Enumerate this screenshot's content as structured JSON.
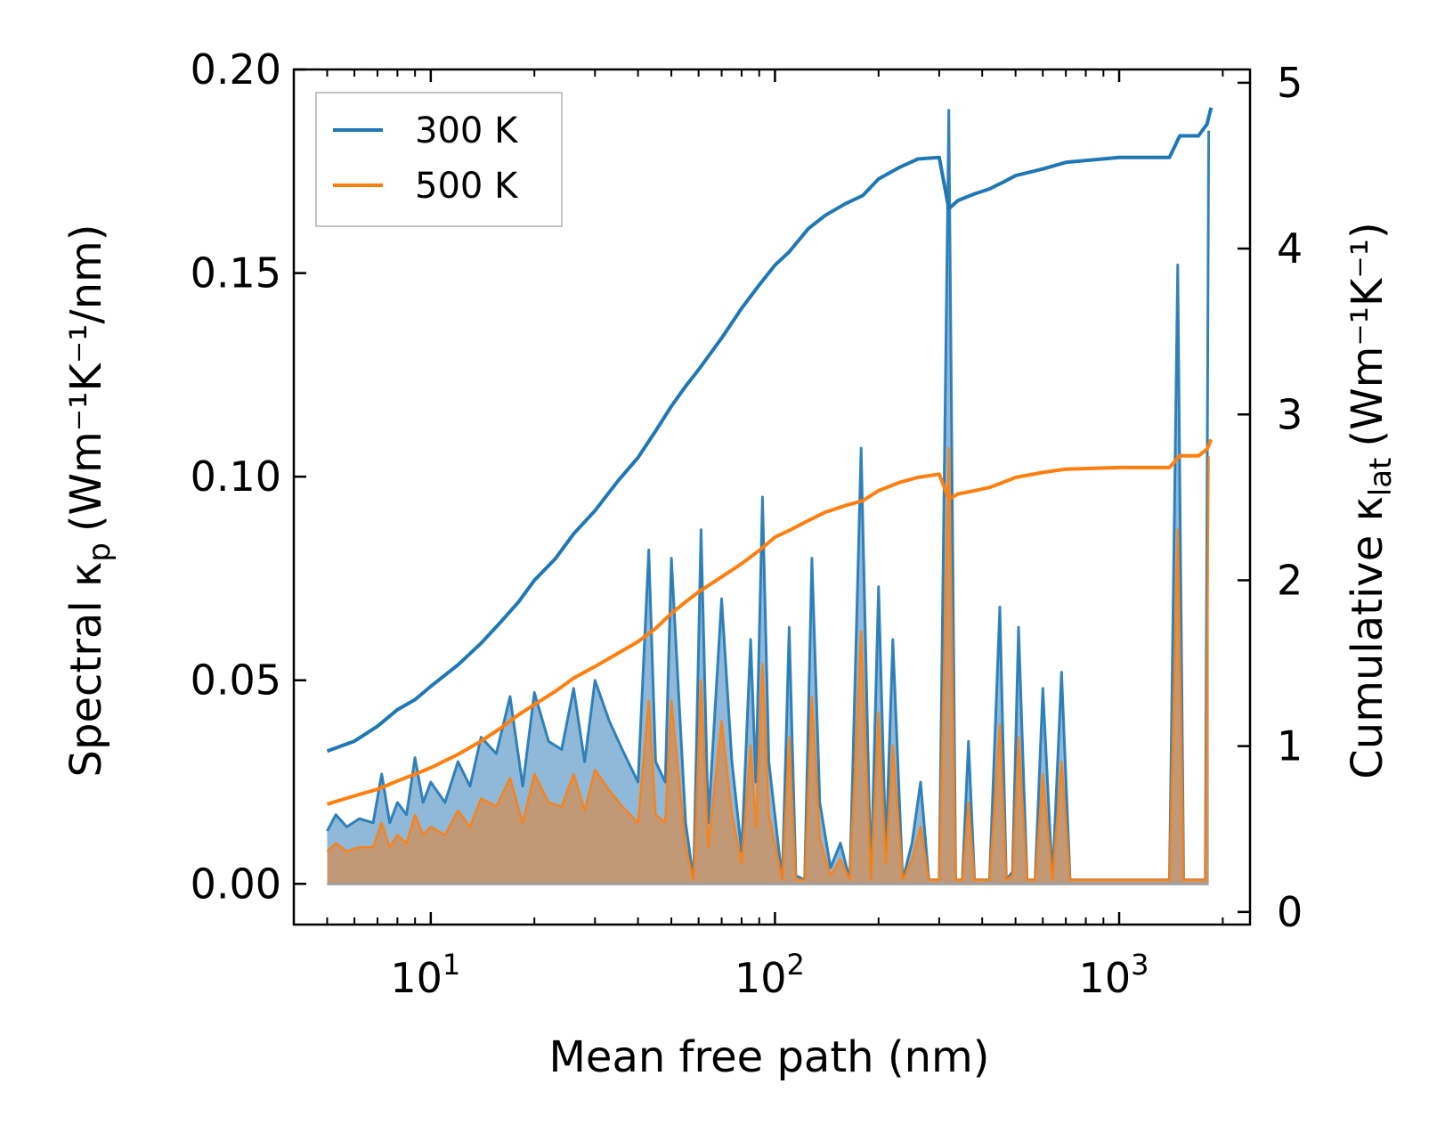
{
  "chart_data": {
    "type": "line",
    "title": "",
    "xlabel": "Mean free path (nm)",
    "ylabel_left": {
      "main": "Spectral κ",
      "sub": "p",
      "units": "(Wm⁻¹K⁻¹/nm)"
    },
    "ylabel_right": {
      "main": "Cumulative κ",
      "sub": "lat",
      "units": "(Wm⁻¹K⁻¹)"
    },
    "x_scale": "log",
    "xlim": [
      4,
      2400
    ],
    "ylim_left": [
      -0.01,
      0.2
    ],
    "ylim_right": [
      -0.076,
      5.08
    ],
    "x_ticks": [
      {
        "value": 10,
        "base": "10",
        "exp": "1"
      },
      {
        "value": 100,
        "base": "10",
        "exp": "2"
      },
      {
        "value": 1000,
        "base": "10",
        "exp": "3"
      }
    ],
    "y_left_ticks": [
      {
        "value": 0.0,
        "label": "0.00"
      },
      {
        "value": 0.05,
        "label": "0.05"
      },
      {
        "value": 0.1,
        "label": "0.10"
      },
      {
        "value": 0.15,
        "label": "0.15"
      },
      {
        "value": 0.2,
        "label": "0.20"
      }
    ],
    "y_right_ticks": [
      {
        "value": 0,
        "label": "0"
      },
      {
        "value": 1,
        "label": "1"
      },
      {
        "value": 2,
        "label": "2"
      },
      {
        "value": 3,
        "label": "3"
      },
      {
        "value": 4,
        "label": "4"
      },
      {
        "value": 5,
        "label": "5"
      }
    ],
    "legend": {
      "position": "top-left",
      "entries": [
        "300 K",
        "500 K"
      ]
    },
    "colors": {
      "300 K": "#1f77b4",
      "500 K": "#ff7f0e",
      "fill_300": "#7bacd2",
      "fill_500": "#c8966a"
    },
    "spectral_series": [
      {
        "name": "300 K",
        "x": [
          5.0,
          5.3,
          5.7,
          6.2,
          6.8,
          7.2,
          7.6,
          8.0,
          8.5,
          9.0,
          9.5,
          10.0,
          11.0,
          12.0,
          13.0,
          14.0,
          15.5,
          17.0,
          18.5,
          20.0,
          22.0,
          24.0,
          26.0,
          28.0,
          30.0,
          33.0,
          36.0,
          40.0,
          43.0,
          45.0,
          48.0,
          50.0,
          55.0,
          58.0,
          61.0,
          64.0,
          70.0,
          75.0,
          80.0,
          85.0,
          88.0,
          92.0,
          96.0,
          105.0,
          110.0,
          115.0,
          122.0,
          128.0,
          135.0,
          145.0,
          155.0,
          165.0,
          178.0,
          190.0,
          200.0,
          210.0,
          220.0,
          235.0,
          250.0,
          265.0,
          280.0,
          300.0,
          320.0,
          335.0,
          350.0,
          365.0,
          380.0,
          420.0,
          450.0,
          470.0,
          490.0,
          510.0,
          540.0,
          570.0,
          600.0,
          640.0,
          680.0,
          720.0,
          1000.0,
          1400.0,
          1480.0,
          1540.0,
          1700.0,
          1780.0,
          1820.0
        ],
        "y": [
          0.013,
          0.017,
          0.014,
          0.016,
          0.015,
          0.027,
          0.015,
          0.02,
          0.017,
          0.031,
          0.02,
          0.025,
          0.02,
          0.03,
          0.024,
          0.036,
          0.032,
          0.046,
          0.024,
          0.047,
          0.035,
          0.033,
          0.048,
          0.03,
          0.05,
          0.04,
          0.033,
          0.025,
          0.082,
          0.03,
          0.025,
          0.08,
          0.015,
          0.001,
          0.087,
          0.015,
          0.07,
          0.03,
          0.008,
          0.06,
          0.025,
          0.095,
          0.03,
          0.001,
          0.063,
          0.002,
          0.001,
          0.08,
          0.02,
          0.004,
          0.01,
          0.001,
          0.107,
          0.001,
          0.073,
          0.008,
          0.06,
          0.001,
          0.01,
          0.025,
          0.001,
          0.001,
          0.19,
          0.001,
          0.001,
          0.035,
          0.001,
          0.001,
          0.068,
          0.001,
          0.003,
          0.063,
          0.001,
          0.001,
          0.048,
          0.001,
          0.052,
          0.001,
          0.001,
          0.001,
          0.152,
          0.001,
          0.001,
          0.001,
          0.185
        ]
      },
      {
        "name": "500 K",
        "x": [
          5.0,
          5.3,
          5.7,
          6.2,
          6.8,
          7.2,
          7.6,
          8.0,
          8.5,
          9.0,
          9.5,
          10.0,
          11.0,
          12.0,
          13.0,
          14.0,
          15.5,
          17.0,
          18.5,
          20.0,
          22.0,
          24.0,
          26.0,
          28.0,
          30.0,
          33.0,
          36.0,
          40.0,
          43.0,
          45.0,
          48.0,
          50.0,
          55.0,
          58.0,
          61.0,
          64.0,
          70.0,
          75.0,
          80.0,
          85.0,
          88.0,
          92.0,
          96.0,
          105.0,
          110.0,
          115.0,
          122.0,
          128.0,
          135.0,
          145.0,
          155.0,
          165.0,
          178.0,
          190.0,
          200.0,
          210.0,
          220.0,
          235.0,
          250.0,
          265.0,
          280.0,
          300.0,
          320.0,
          335.0,
          350.0,
          365.0,
          380.0,
          420.0,
          450.0,
          470.0,
          490.0,
          510.0,
          540.0,
          570.0,
          600.0,
          640.0,
          680.0,
          720.0,
          1000.0,
          1400.0,
          1480.0,
          1540.0,
          1700.0,
          1780.0,
          1820.0
        ],
        "y": [
          0.008,
          0.01,
          0.008,
          0.009,
          0.009,
          0.015,
          0.009,
          0.012,
          0.01,
          0.017,
          0.012,
          0.014,
          0.012,
          0.018,
          0.014,
          0.021,
          0.019,
          0.026,
          0.015,
          0.027,
          0.02,
          0.019,
          0.027,
          0.018,
          0.028,
          0.023,
          0.019,
          0.015,
          0.045,
          0.017,
          0.015,
          0.045,
          0.009,
          0.001,
          0.05,
          0.009,
          0.04,
          0.017,
          0.005,
          0.034,
          0.014,
          0.054,
          0.017,
          0.001,
          0.036,
          0.001,
          0.001,
          0.046,
          0.011,
          0.002,
          0.006,
          0.001,
          0.062,
          0.001,
          0.042,
          0.005,
          0.034,
          0.001,
          0.006,
          0.014,
          0.001,
          0.001,
          0.107,
          0.001,
          0.001,
          0.02,
          0.001,
          0.001,
          0.039,
          0.001,
          0.002,
          0.036,
          0.001,
          0.001,
          0.027,
          0.001,
          0.03,
          0.001,
          0.001,
          0.001,
          0.087,
          0.001,
          0.001,
          0.001,
          0.105
        ]
      }
    ],
    "cumulative_series": [
      {
        "name": "300 K",
        "x": [
          5.0,
          6.0,
          7.0,
          8.0,
          9.0,
          10.0,
          12.0,
          14.0,
          16.0,
          18.0,
          20.0,
          23.0,
          26.0,
          30.0,
          35.0,
          40.0,
          45.0,
          50.0,
          55.0,
          60.0,
          70.0,
          80.0,
          90.0,
          100.0,
          110.0,
          125.0,
          140.0,
          160.0,
          180.0,
          200.0,
          230.0,
          260.0,
          300.0,
          320.0,
          340.0,
          380.0,
          420.0,
          460.0,
          500.0,
          600.0,
          700.0,
          1000.0,
          1400.0,
          1500.0,
          1700.0,
          1800.0,
          1850.0
        ],
        "y": [
          0.97,
          1.03,
          1.12,
          1.22,
          1.28,
          1.36,
          1.49,
          1.62,
          1.75,
          1.87,
          2.0,
          2.13,
          2.28,
          2.42,
          2.6,
          2.74,
          2.9,
          3.05,
          3.17,
          3.27,
          3.46,
          3.64,
          3.78,
          3.9,
          3.98,
          4.12,
          4.2,
          4.27,
          4.32,
          4.42,
          4.49,
          4.54,
          4.55,
          4.24,
          4.29,
          4.33,
          4.36,
          4.4,
          4.44,
          4.48,
          4.52,
          4.55,
          4.55,
          4.68,
          4.68,
          4.75,
          4.85
        ]
      },
      {
        "name": "500 K",
        "x": [
          5.0,
          6.0,
          7.0,
          8.0,
          9.0,
          10.0,
          12.0,
          14.0,
          16.0,
          18.0,
          20.0,
          23.0,
          26.0,
          30.0,
          35.0,
          40.0,
          45.0,
          50.0,
          55.0,
          60.0,
          70.0,
          80.0,
          90.0,
          100.0,
          110.0,
          125.0,
          140.0,
          160.0,
          180.0,
          200.0,
          230.0,
          260.0,
          300.0,
          320.0,
          340.0,
          380.0,
          420.0,
          460.0,
          500.0,
          600.0,
          700.0,
          1000.0,
          1400.0,
          1500.0,
          1700.0,
          1800.0,
          1850.0
        ],
        "y": [
          0.65,
          0.7,
          0.74,
          0.79,
          0.83,
          0.87,
          0.95,
          1.03,
          1.11,
          1.19,
          1.25,
          1.33,
          1.41,
          1.48,
          1.56,
          1.63,
          1.71,
          1.8,
          1.87,
          1.93,
          2.02,
          2.1,
          2.18,
          2.26,
          2.3,
          2.36,
          2.41,
          2.45,
          2.48,
          2.54,
          2.59,
          2.62,
          2.64,
          2.49,
          2.52,
          2.54,
          2.56,
          2.59,
          2.62,
          2.65,
          2.67,
          2.68,
          2.68,
          2.75,
          2.75,
          2.79,
          2.85
        ]
      }
    ]
  }
}
